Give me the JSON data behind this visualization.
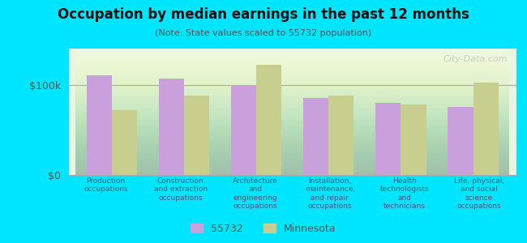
{
  "title": "Occupation by median earnings in the past 12 months",
  "subtitle": "(Note: State values scaled to 55732 population)",
  "categories": [
    "Production\noccupations",
    "Construction\nand extraction\noccupations",
    "Architecture\nand\nengineering\noccupations",
    "Installation,\nmaintenance,\nand repair\noccupations",
    "Health\ntechnologists\nand\ntechnicians",
    "Life, physical,\nand social\nscience\noccupations"
  ],
  "values_55732": [
    110000,
    107000,
    100000,
    85000,
    80000,
    75000
  ],
  "values_mn": [
    72000,
    88000,
    122000,
    88000,
    78000,
    102000
  ],
  "color_55732": "#c9a0dc",
  "color_mn": "#c8cf8e",
  "bar_width": 0.35,
  "ylim": [
    0,
    140000
  ],
  "yticks": [
    0,
    100000
  ],
  "ytick_labels": [
    "$0",
    "$100k"
  ],
  "background_color": "#e8f5e0",
  "outer_background": "#00e5ff",
  "legend_label_55732": "55732",
  "legend_label_mn": "Minnesota",
  "watermark": "City-Data.com"
}
